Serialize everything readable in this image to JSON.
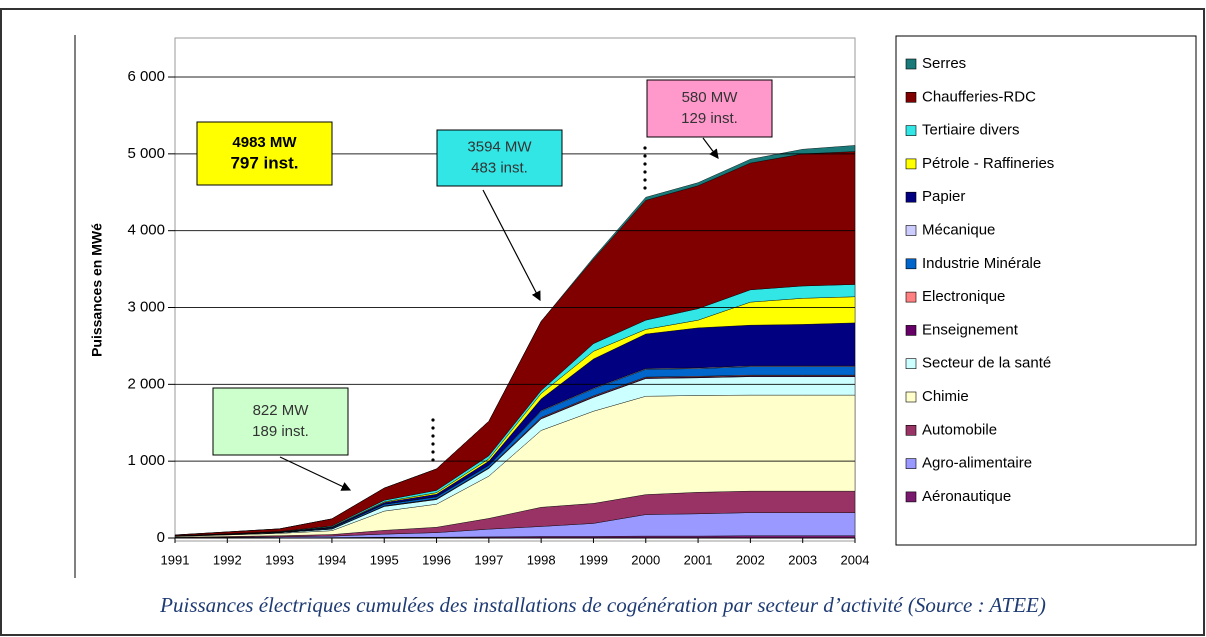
{
  "chart_data": {
    "type": "stacked-area",
    "y_label": "Puissances en MWé",
    "caption": "Puissances électriques cumulées des installations de cogénération par secteur d’activité (Source : ATEE)",
    "categories": [
      "1991",
      "1992",
      "1993",
      "1994",
      "1995",
      "1996",
      "1997",
      "1998",
      "1999",
      "2000",
      "2001",
      "2002",
      "2003",
      "2004"
    ],
    "ylim": [
      0,
      6500
    ],
    "yticks": [
      0,
      {
        "value": 1000,
        "label": "1 000"
      },
      {
        "value": 2000,
        "label": "2 000"
      },
      {
        "value": 3000,
        "label": "3 000"
      },
      {
        "value": 4000,
        "label": "4 000"
      },
      {
        "value": 5000,
        "label": "5 000"
      },
      {
        "value": 6000,
        "label": "6 000"
      }
    ],
    "grid": true,
    "series": [
      {
        "name": "Aéronautique",
        "color": "#7a1a6e",
        "values": [
          0,
          0,
          0,
          5,
          10,
          10,
          15,
          20,
          20,
          25,
          25,
          30,
          30,
          30
        ]
      },
      {
        "name": "Agro-alimentaire",
        "color": "#9999ff",
        "values": [
          5,
          10,
          15,
          20,
          40,
          60,
          100,
          130,
          170,
          280,
          290,
          300,
          300,
          300
        ]
      },
      {
        "name": "Automobile",
        "color": "#993366",
        "values": [
          5,
          10,
          15,
          20,
          50,
          70,
          140,
          250,
          260,
          260,
          280,
          280,
          280,
          280
        ]
      },
      {
        "name": "Chimie",
        "color": "#ffffcc",
        "values": [
          10,
          20,
          30,
          50,
          250,
          300,
          550,
          1000,
          1200,
          1280,
          1260,
          1250,
          1250,
          1250
        ]
      },
      {
        "name": "Secteur de la santé",
        "color": "#ccffff",
        "values": [
          5,
          5,
          10,
          20,
          60,
          60,
          100,
          150,
          180,
          230,
          230,
          240,
          240,
          240
        ]
      },
      {
        "name": "Enseignement",
        "color": "#660066",
        "values": [
          0,
          0,
          0,
          2,
          5,
          5,
          5,
          10,
          10,
          10,
          10,
          10,
          10,
          10
        ]
      },
      {
        "name": "Electronique",
        "color": "#ff8080",
        "values": [
          0,
          0,
          0,
          2,
          3,
          5,
          5,
          10,
          10,
          10,
          10,
          10,
          10,
          10
        ]
      },
      {
        "name": "Industrie Minérale",
        "color": "#0066cc",
        "values": [
          2,
          3,
          5,
          10,
          20,
          25,
          30,
          80,
          90,
          100,
          100,
          110,
          110,
          110
        ]
      },
      {
        "name": "Mécanique",
        "color": "#ccccff",
        "values": [
          0,
          0,
          0,
          2,
          3,
          5,
          5,
          10,
          10,
          10,
          10,
          10,
          10,
          10
        ]
      },
      {
        "name": "Papier",
        "color": "#000080",
        "values": [
          3,
          5,
          5,
          10,
          20,
          30,
          50,
          150,
          380,
          450,
          520,
          530,
          540,
          560
        ]
      },
      {
        "name": "Pétrole - Raffineries",
        "color": "#ffff00",
        "values": [
          0,
          0,
          0,
          5,
          10,
          20,
          30,
          70,
          100,
          60,
          100,
          300,
          340,
          340
        ]
      },
      {
        "name": "Tertiaire divers",
        "color": "#33e6e6",
        "values": [
          0,
          2,
          5,
          10,
          20,
          30,
          40,
          40,
          100,
          120,
          150,
          160,
          160,
          160
        ]
      },
      {
        "name": "Chaufferies-RDC",
        "color": "#800000",
        "values": [
          10,
          25,
          35,
          94,
          159,
          280,
          450,
          900,
          1100,
          1560,
          1600,
          1650,
          1720,
          1730
        ]
      },
      {
        "name": "Serres",
        "color": "#1a7a7a",
        "values": [
          0,
          0,
          0,
          0,
          0,
          0,
          0,
          0,
          20,
          40,
          40,
          50,
          60,
          80
        ]
      }
    ],
    "annotations": [
      {
        "lines": [
          "4983 MW",
          "797 inst."
        ],
        "color": "#ffff00"
      },
      {
        "lines": [
          "3594 MW",
          "483 inst."
        ],
        "color": "#33e6e6"
      },
      {
        "lines": [
          "580 MW",
          "129 inst."
        ],
        "color": "#ff99cc"
      },
      {
        "lines": [
          "822 MW",
          "189 inst."
        ],
        "color": "#ccffcc"
      }
    ]
  }
}
